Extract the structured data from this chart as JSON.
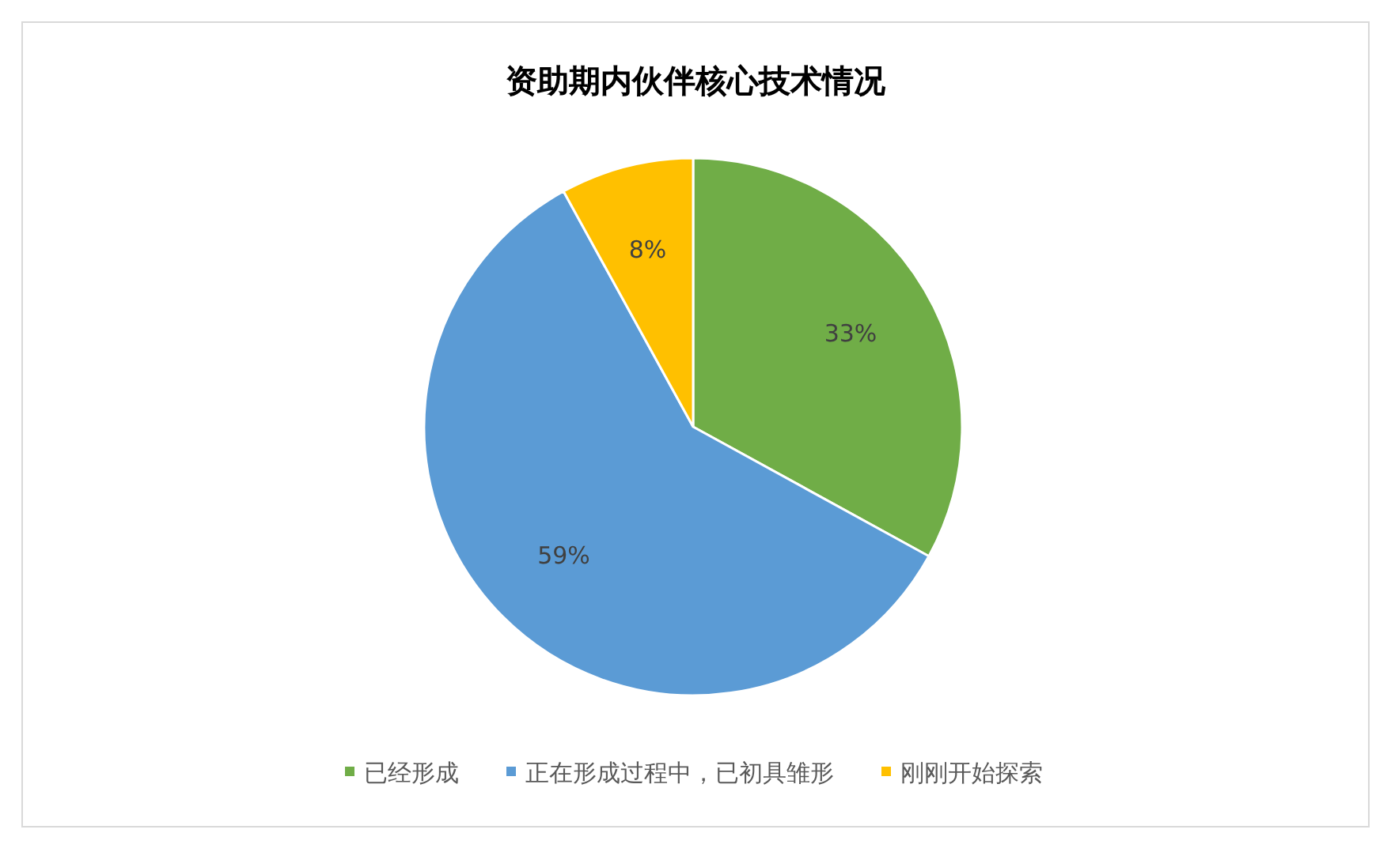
{
  "chart_data": {
    "type": "pie",
    "title": "资助期内伙伴核心技术情况",
    "categories": [
      "已经形成",
      "正在形成过程中，已初具雏形",
      "刚刚开始探索"
    ],
    "values": [
      33,
      59,
      8
    ],
    "colors": [
      "#70ad47",
      "#5b9bd5",
      "#ffc000"
    ],
    "value_labels": [
      "33%",
      "59%",
      "8%"
    ],
    "legend": "bottom"
  }
}
